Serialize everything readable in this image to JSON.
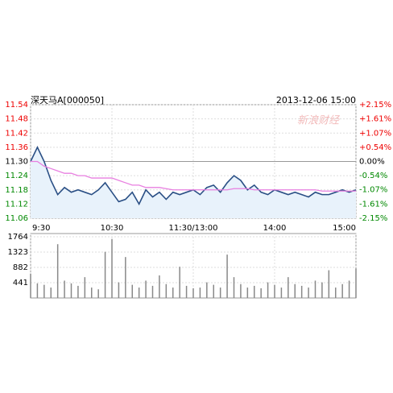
{
  "chart_data": [
    {
      "type": "line",
      "title": "深天马A[000050]",
      "subtitle": "2013-12-06 15:00",
      "watermark": "新浪财经",
      "x": [
        0,
        5,
        10,
        15,
        20,
        25,
        30,
        35,
        40,
        45,
        50,
        55,
        60,
        65,
        70,
        75,
        80,
        85,
        90,
        95,
        100,
        105,
        110,
        115,
        120,
        125,
        130,
        135,
        140,
        145,
        150,
        155,
        160,
        165,
        170,
        175,
        180,
        185,
        190,
        195,
        200,
        205,
        210,
        215,
        220,
        225,
        230,
        235,
        240
      ],
      "xlim": [
        0,
        240
      ],
      "xticks": [
        {
          "value": 0,
          "label": "9:30"
        },
        {
          "value": 60,
          "label": "10:30"
        },
        {
          "value": 120,
          "label": "11:30/13:00"
        },
        {
          "value": 180,
          "label": "14:00"
        },
        {
          "value": 240,
          "label": "15:00"
        }
      ],
      "ylim": [
        11.06,
        11.54
      ],
      "yticks": [
        11.54,
        11.48,
        11.42,
        11.36,
        {
          "value": 11.3,
          "label": "11.30"
        },
        11.24,
        11.18,
        11.12,
        11.06
      ],
      "y2lim": [
        -2.15,
        2.15
      ],
      "y2ticks": [
        {
          "value": 2.15,
          "label": "+2.15%"
        },
        {
          "value": 1.61,
          "label": "+1.61%"
        },
        {
          "value": 1.07,
          "label": "+1.07%"
        },
        {
          "value": 0.54,
          "label": "+0.54%"
        },
        {
          "value": 0,
          "label": "0.00%"
        },
        {
          "value": -0.54,
          "label": "-0.54%"
        },
        {
          "value": -1.07,
          "label": "-1.07%"
        },
        {
          "value": -1.61,
          "label": "-1.61%"
        },
        {
          "value": -2.15,
          "label": "-2.15%"
        }
      ],
      "grid": true,
      "series": [
        {
          "color": "#2a4f85",
          "values": [
            11.3,
            11.36,
            11.3,
            11.22,
            11.16,
            11.19,
            11.17,
            11.18,
            11.17,
            11.16,
            11.18,
            11.21,
            11.17,
            11.13,
            11.14,
            11.17,
            11.12,
            11.18,
            11.15,
            11.17,
            11.14,
            11.17,
            11.16,
            11.17,
            11.18,
            11.16,
            11.19,
            11.2,
            11.17,
            11.21,
            11.24,
            11.22,
            11.18,
            11.2,
            11.17,
            11.16,
            11.18,
            11.17,
            11.16,
            11.17,
            11.16,
            11.15,
            11.17,
            11.16,
            11.16,
            11.17,
            11.18,
            11.17,
            11.18
          ]
        },
        {
          "color": "#e87fe0",
          "values": [
            11.3,
            11.3,
            11.28,
            11.27,
            11.26,
            11.25,
            11.25,
            11.24,
            11.24,
            11.23,
            11.23,
            11.23,
            11.23,
            11.22,
            11.21,
            11.2,
            11.2,
            11.19,
            11.19,
            11.19,
            11.185,
            11.18,
            11.18,
            11.18,
            11.18,
            11.18,
            11.18,
            11.18,
            11.18,
            11.18,
            11.185,
            11.185,
            11.185,
            11.18,
            11.18,
            11.18,
            11.18,
            11.18,
            11.18,
            11.18,
            11.18,
            11.18,
            11.18,
            11.175,
            11.175,
            11.175,
            11.175,
            11.175,
            11.175
          ]
        }
      ]
    },
    {
      "type": "bar",
      "color": "#888",
      "x": [
        0,
        5,
        10,
        15,
        20,
        25,
        30,
        35,
        40,
        45,
        50,
        55,
        60,
        65,
        70,
        75,
        80,
        85,
        90,
        95,
        100,
        105,
        110,
        115,
        120,
        125,
        130,
        135,
        140,
        145,
        150,
        155,
        160,
        165,
        170,
        175,
        180,
        185,
        190,
        195,
        200,
        205,
        210,
        215,
        220,
        225,
        230,
        235,
        240
      ],
      "values": [
        700,
        420,
        380,
        300,
        1550,
        500,
        420,
        350,
        600,
        300,
        250,
        1330,
        1700,
        450,
        1180,
        380,
        300,
        500,
        350,
        650,
        400,
        300,
        900,
        350,
        280,
        300,
        450,
        380,
        300,
        1250,
        600,
        400,
        300,
        350,
        280,
        450,
        380,
        300,
        600,
        400,
        350,
        300,
        500,
        450,
        800,
        300,
        400,
        500,
        850
      ],
      "ylim": [
        0,
        1764
      ],
      "yticks": [
        1764,
        1323,
        882,
        441
      ]
    }
  ]
}
